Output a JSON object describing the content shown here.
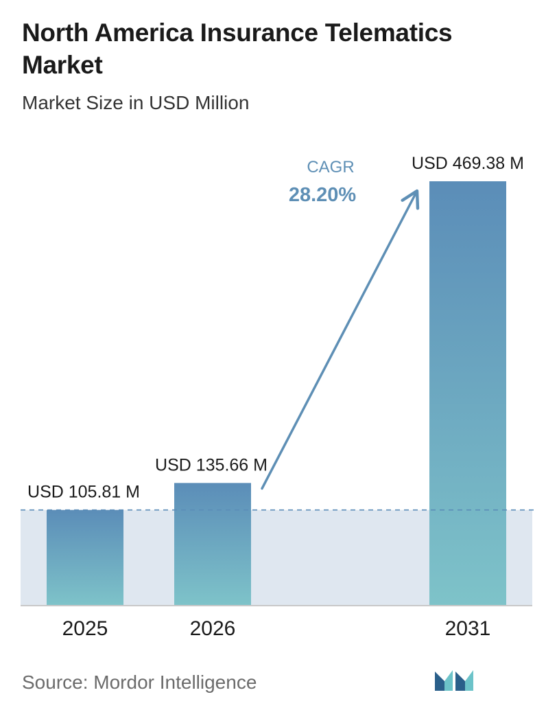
{
  "title": "North America Insurance Telematics Market",
  "subtitle": "Market Size in USD Million",
  "source": "Source: Mordor Intelligence",
  "chart_data": {
    "type": "bar",
    "categories": [
      "2025",
      "2026",
      "2031"
    ],
    "values": [
      105.81,
      135.66,
      469.38
    ],
    "value_labels": [
      "USD 105.81 M",
      "USD 135.66 M",
      "USD 469.38 M"
    ],
    "annotation": {
      "label": "CAGR",
      "value": "28.20%"
    },
    "ylim": [
      0,
      469.38
    ],
    "grid": false,
    "colors": {
      "bar_top": "#5b8db8",
      "bar_bottom": "#7ec3c9",
      "band": "#dfe7f0",
      "accent": "#5e8fb5",
      "baseline": "#c8c8c8"
    }
  }
}
